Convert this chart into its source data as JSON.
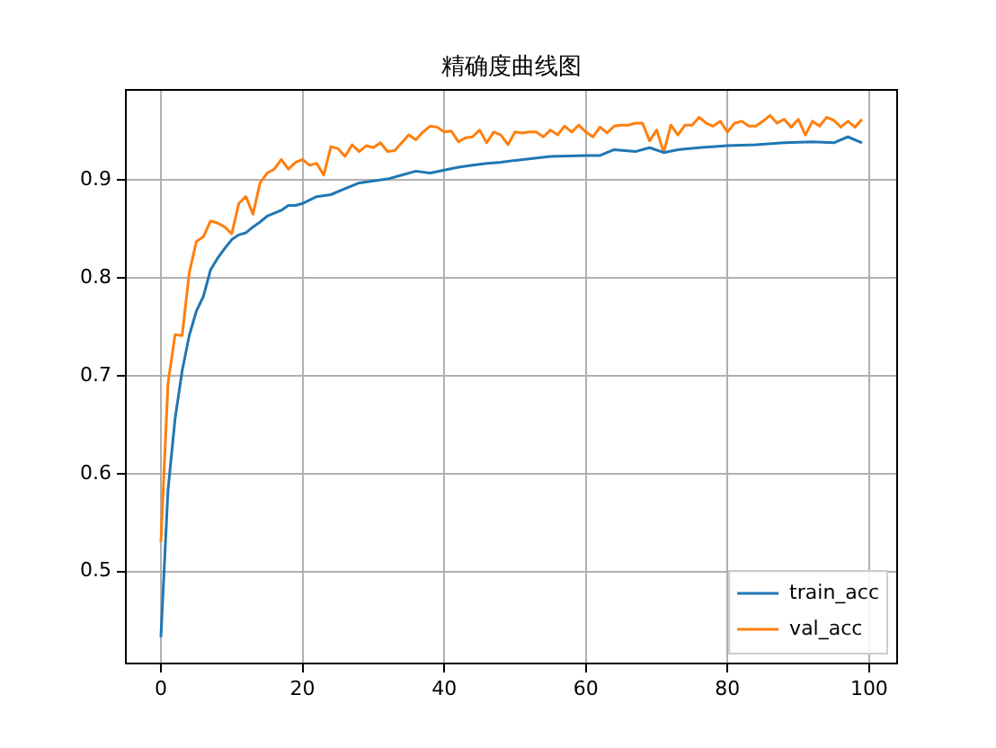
{
  "chart_data": {
    "type": "line",
    "title": "精确度曲线图",
    "xlim": [
      -4.95,
      103.95
    ],
    "xticks": [
      0,
      20,
      40,
      60,
      80,
      100
    ],
    "ylim": [
      0.406,
      0.992
    ],
    "yticks": [
      0.5,
      0.6,
      0.7,
      0.8,
      0.9
    ],
    "grid": true,
    "legend": "bottom right",
    "marker": "none",
    "line_style": "solid",
    "series": [
      {
        "name": "train_acc",
        "color": "#1f77b4",
        "x": [
          0,
          1,
          2,
          3,
          4,
          5,
          6,
          7,
          8,
          9,
          10,
          11,
          12,
          13,
          14,
          15,
          16,
          17,
          18,
          19,
          20,
          22,
          24,
          26,
          28,
          30,
          32,
          34,
          36,
          38,
          40,
          42,
          44,
          46,
          48,
          50,
          55,
          60,
          62,
          64,
          67,
          69,
          71,
          73,
          76,
          80,
          84,
          88,
          92,
          95,
          97,
          99
        ],
        "values": [
          0.433,
          0.583,
          0.656,
          0.705,
          0.741,
          0.766,
          0.781,
          0.808,
          0.82,
          0.83,
          0.839,
          0.844,
          0.846,
          0.852,
          0.857,
          0.863,
          0.866,
          0.869,
          0.874,
          0.874,
          0.876,
          0.883,
          0.885,
          0.891,
          0.897,
          0.899,
          0.901,
          0.905,
          0.909,
          0.907,
          0.91,
          0.913,
          0.915,
          0.917,
          0.918,
          0.92,
          0.924,
          0.925,
          0.925,
          0.931,
          0.929,
          0.933,
          0.928,
          0.931,
          0.933,
          0.935,
          0.936,
          0.938,
          0.939,
          0.938,
          0.944,
          0.938
        ]
      },
      {
        "name": "val_acc",
        "color": "#ff7f0e",
        "x": [
          0,
          1,
          2,
          3,
          4,
          5,
          6,
          7,
          8,
          9,
          10,
          11,
          12,
          13,
          14,
          15,
          16,
          17,
          18,
          19,
          20,
          21,
          22,
          23,
          24,
          25,
          26,
          27,
          28,
          29,
          30,
          31,
          32,
          33,
          34,
          35,
          36,
          37,
          38,
          39,
          40,
          41,
          42,
          43,
          44,
          45,
          46,
          47,
          48,
          49,
          50,
          51,
          52,
          53,
          54,
          55,
          56,
          57,
          58,
          59,
          60,
          61,
          62,
          63,
          64,
          65,
          66,
          67,
          68,
          69,
          70,
          71,
          72,
          73,
          74,
          75,
          76,
          77,
          78,
          79,
          80,
          81,
          82,
          83,
          84,
          85,
          86,
          87,
          88,
          89,
          90,
          91,
          92,
          93,
          94,
          95,
          96,
          97,
          98,
          99
        ],
        "values": [
          0.53,
          0.692,
          0.742,
          0.741,
          0.805,
          0.837,
          0.842,
          0.858,
          0.856,
          0.852,
          0.845,
          0.876,
          0.883,
          0.865,
          0.897,
          0.907,
          0.911,
          0.921,
          0.911,
          0.918,
          0.921,
          0.915,
          0.917,
          0.905,
          0.934,
          0.932,
          0.924,
          0.936,
          0.929,
          0.935,
          0.933,
          0.938,
          0.929,
          0.93,
          0.938,
          0.946,
          0.941,
          0.949,
          0.955,
          0.954,
          0.949,
          0.95,
          0.939,
          0.943,
          0.944,
          0.951,
          0.938,
          0.949,
          0.946,
          0.936,
          0.949,
          0.948,
          0.949,
          0.949,
          0.944,
          0.951,
          0.946,
          0.955,
          0.949,
          0.956,
          0.949,
          0.944,
          0.954,
          0.948,
          0.955,
          0.956,
          0.956,
          0.958,
          0.958,
          0.94,
          0.951,
          0.928,
          0.956,
          0.946,
          0.956,
          0.956,
          0.964,
          0.958,
          0.955,
          0.96,
          0.949,
          0.958,
          0.96,
          0.955,
          0.955,
          0.96,
          0.966,
          0.958,
          0.962,
          0.954,
          0.962,
          0.946,
          0.96,
          0.955,
          0.964,
          0.961,
          0.954,
          0.96,
          0.954,
          0.962
        ]
      }
    ]
  }
}
